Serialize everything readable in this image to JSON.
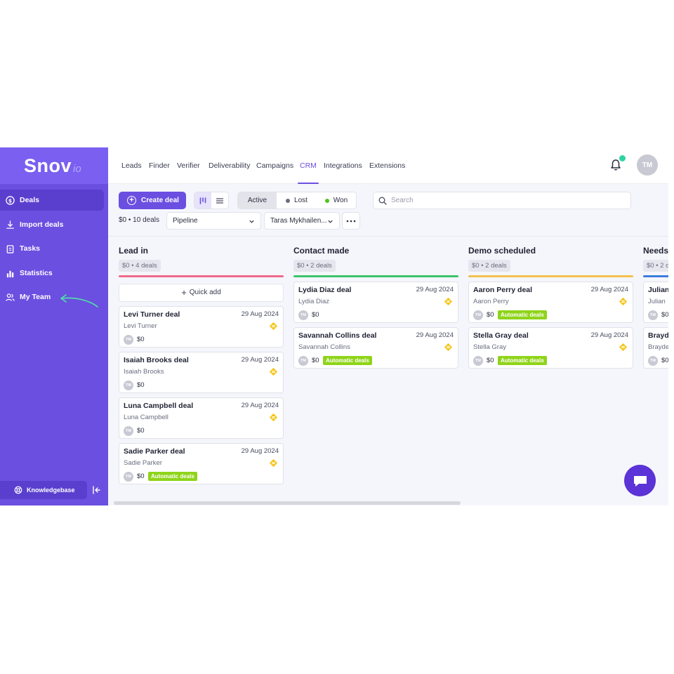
{
  "app": {
    "logo_main": "Snov",
    "logo_suffix": "io"
  },
  "sidebar": {
    "items": [
      {
        "label": "Deals",
        "icon": "dollar-icon",
        "active": true
      },
      {
        "label": "Import deals",
        "icon": "download-icon",
        "active": false
      },
      {
        "label": "Tasks",
        "icon": "clipboard-icon",
        "active": false
      },
      {
        "label": "Statistics",
        "icon": "bar-chart-icon",
        "active": false
      },
      {
        "label": "My Team",
        "icon": "users-icon",
        "active": false
      }
    ],
    "knowledgebase_label": "Knowledgebase"
  },
  "topnav": {
    "items": [
      "Leads",
      "Finder",
      "Verifier",
      "Deliverability",
      "Campaigns",
      "CRM",
      "Integrations",
      "Extensions"
    ],
    "active": "CRM",
    "avatar_initials": "TM"
  },
  "toolbar": {
    "create_label": "Create deal",
    "status_tabs": [
      {
        "label": "Active",
        "dot_color": ""
      },
      {
        "label": "Lost",
        "dot_color": "#6b6e7e"
      },
      {
        "label": "Won",
        "dot_color": "#52c41a"
      }
    ],
    "search_placeholder": "Search",
    "summary": "$0 • 10 deals",
    "pipeline_select": "Pipeline",
    "owner_select": "Taras Mykhailen..."
  },
  "colors": {
    "accent": "#6b4fe0",
    "tag_green": "#8fd41a",
    "priority_yellow": "#f5c518"
  },
  "board": {
    "quick_add_label": "Quick add",
    "columns": [
      {
        "title": "Lead in",
        "summary": "$0 • 4 deals",
        "bar_color": "#f06a8a",
        "cards": [
          {
            "title": "Levi Turner deal",
            "date": "29 Aug 2024",
            "person": "Levi Turner",
            "avatar": "TM",
            "amount": "$0",
            "tag": ""
          },
          {
            "title": "Isaiah Brooks deal",
            "date": "29 Aug 2024",
            "person": "Isaiah Brooks",
            "avatar": "TM",
            "amount": "$0",
            "tag": ""
          },
          {
            "title": "Luna Campbell deal",
            "date": "29 Aug 2024",
            "person": "Luna Campbell",
            "avatar": "TM",
            "amount": "$0",
            "tag": ""
          },
          {
            "title": "Sadie Parker deal",
            "date": "29 Aug 2024",
            "person": "Sadie Parker",
            "avatar": "TM",
            "amount": "$0",
            "tag": "Automatic deals"
          }
        ]
      },
      {
        "title": "Contact made",
        "summary": "$0 • 2 deals",
        "bar_color": "#3cc46a",
        "cards": [
          {
            "title": "Lydia Diaz deal",
            "date": "29 Aug 2024",
            "person": "Lydia Diaz",
            "avatar": "TM",
            "amount": "$0",
            "tag": ""
          },
          {
            "title": "Savannah Collins deal",
            "date": "29 Aug 2024",
            "person": "Savannah Collins",
            "avatar": "TM",
            "amount": "$0",
            "tag": "Automatic deals"
          }
        ]
      },
      {
        "title": "Demo scheduled",
        "summary": "$0 • 2 deals",
        "bar_color": "#f2c14e",
        "cards": [
          {
            "title": "Aaron Perry deal",
            "date": "29 Aug 2024",
            "person": "Aaron Perry",
            "avatar": "TM",
            "amount": "$0",
            "tag": "Automatic deals"
          },
          {
            "title": "Stella Gray deal",
            "date": "29 Aug 2024",
            "person": "Stella Gray",
            "avatar": "TM",
            "amount": "$0",
            "tag": "Automatic deals"
          }
        ]
      },
      {
        "title": "Needs",
        "summary": "$0 • 2 d",
        "bar_color": "#3b7ddd",
        "cards": [
          {
            "title": "Julian",
            "date": "",
            "person": "Julian",
            "avatar": "TM",
            "amount": "$0",
            "tag": ""
          },
          {
            "title": "Brayde",
            "date": "",
            "person": "Brayde",
            "avatar": "TM",
            "amount": "$0",
            "tag": ""
          }
        ]
      }
    ]
  }
}
